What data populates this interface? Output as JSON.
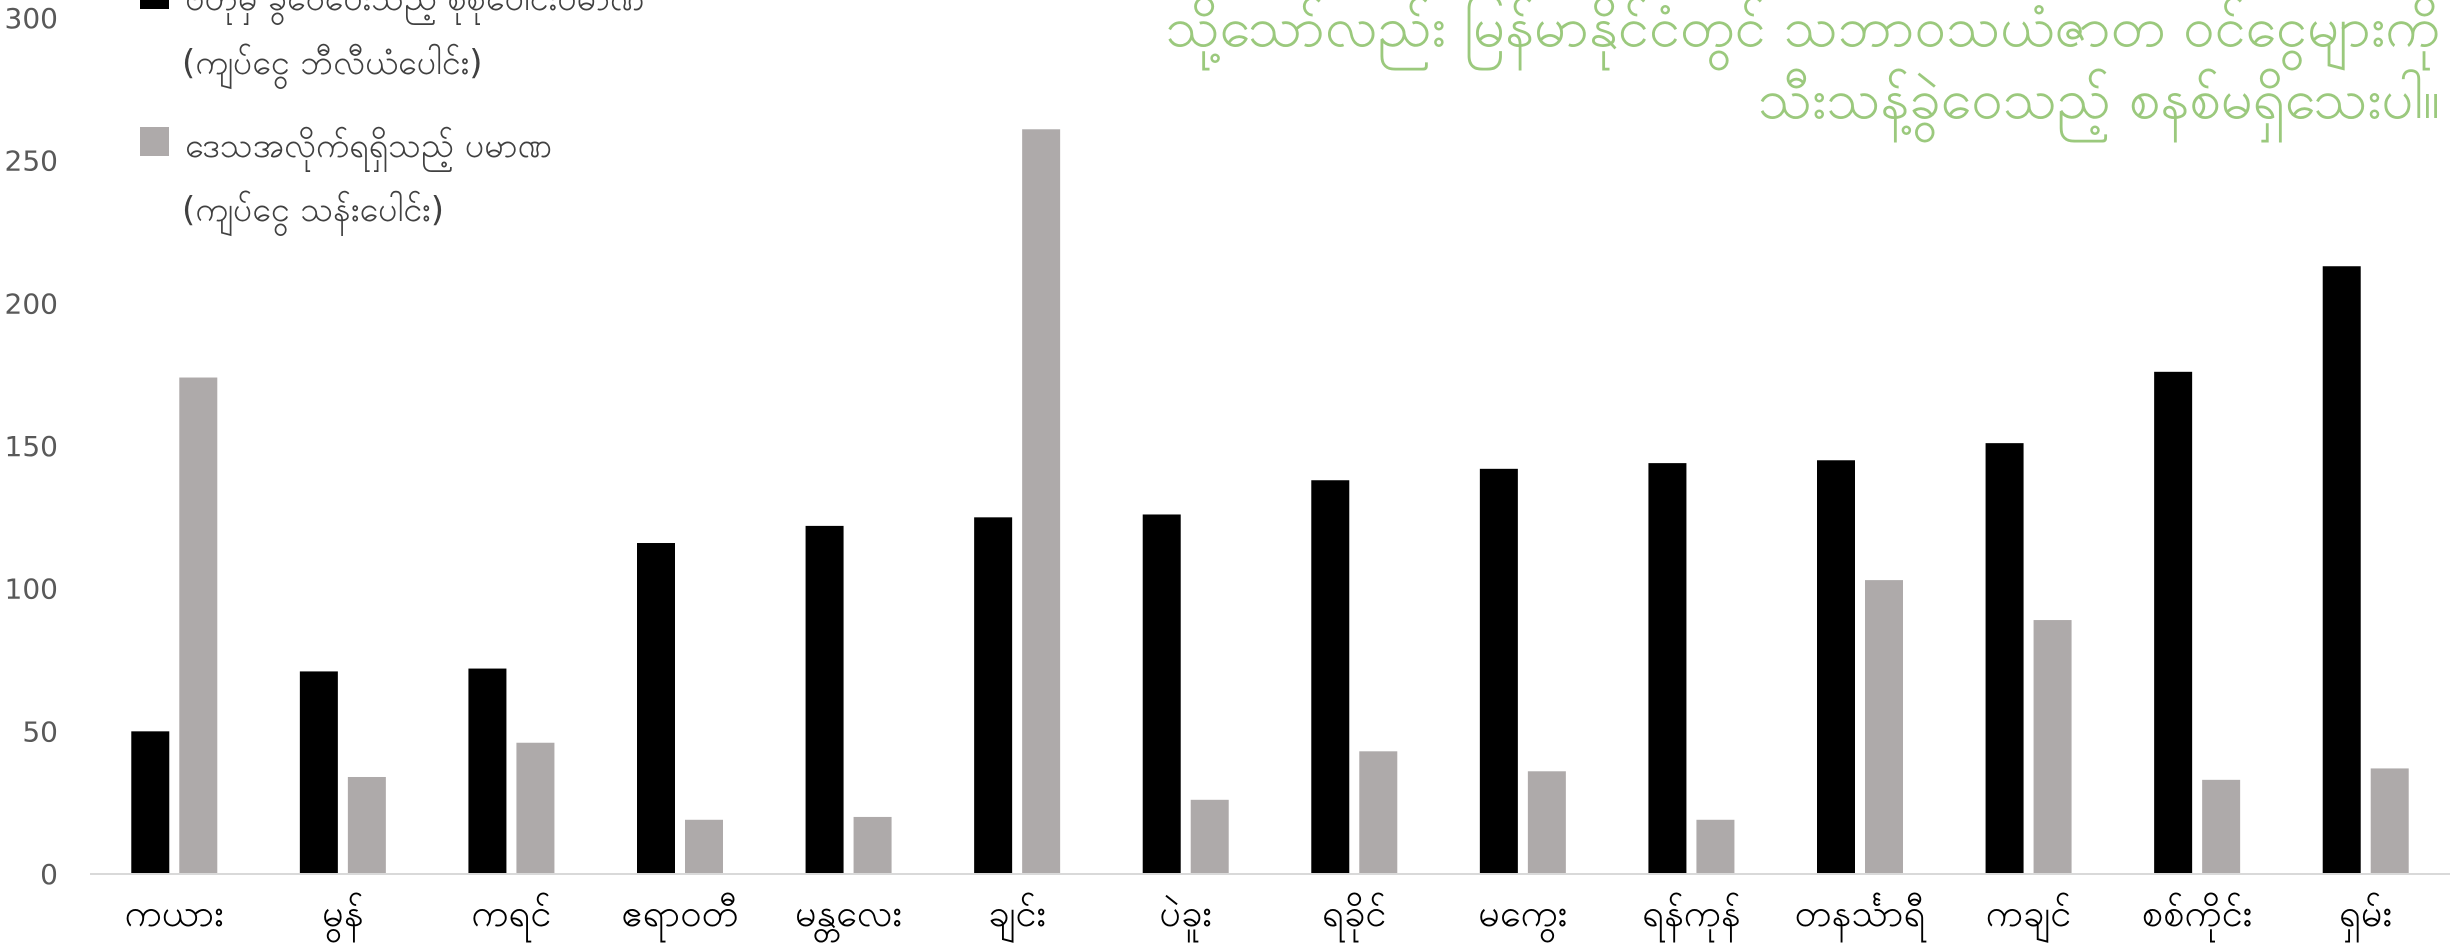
{
  "chart_data": {
    "type": "bar",
    "title_lines": [
      "သို့သော်လည်း မြန်မာနိုင်ငံတွင် သဘာဝသယံဇာတ ဝင်ငွေများကို",
      "သီးသန့်ခွဲဝေသည့် စနစ်မရှိသေးပါ။"
    ],
    "categories": [
      "ကယား",
      "မွန်",
      "ကရင်",
      "ဧရာဝတီ",
      "မန္တလေး",
      "ချင်း",
      "ပဲခူး",
      "ရခိုင်",
      "မကွေး",
      "ရန်ကုန်",
      "တနင်္သာရီ",
      "ကချင်",
      "စစ်ကိုင်း",
      "ရှမ်း"
    ],
    "series": [
      {
        "name_lines": [
          "ဗဟိုမှ ခွဲဝေပေးသည့် စုစုပေါင်းပမာဏ",
          "(ကျပ်ငွေ ဘီလီယံပေါင်း)"
        ],
        "color": "#000000",
        "values": [
          50,
          71,
          72,
          116,
          122,
          125,
          126,
          138,
          142,
          144,
          145,
          151,
          176,
          213
        ]
      },
      {
        "name_lines": [
          "ဒေသအလိုက်ရရှိသည့် ပမာဏ",
          "(ကျပ်ငွေ သန်းပေါင်း)"
        ],
        "color": "#aeaaaa",
        "values": [
          174,
          34,
          46,
          19,
          20,
          261,
          26,
          43,
          36,
          19,
          103,
          89,
          33,
          37
        ]
      }
    ],
    "ylim": [
      0,
      300
    ],
    "yticks": [
      0,
      50,
      100,
      150,
      200,
      250,
      300
    ],
    "grid": false,
    "legend_position": "top-left"
  }
}
